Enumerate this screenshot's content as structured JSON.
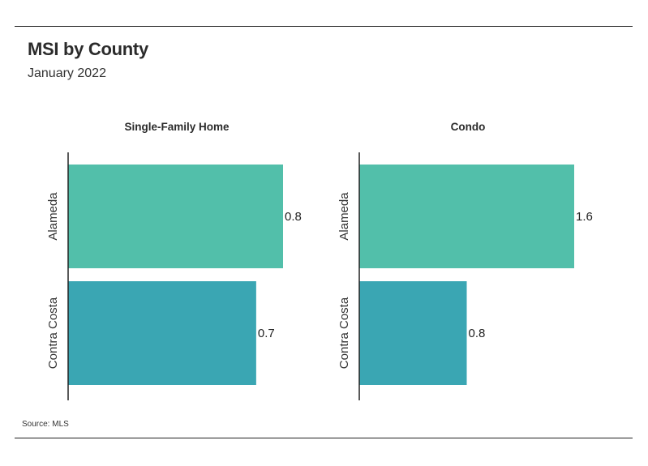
{
  "title": "MSI by County",
  "subtitle": "January 2022",
  "source": "Source:  MLS",
  "colors": {
    "alameda": "#52bfaa",
    "contra_costa": "#3aa6b3",
    "axis": "#222222"
  },
  "chart_data": [
    {
      "type": "bar",
      "orientation": "horizontal",
      "title": "Single-Family Home",
      "categories": [
        "Alameda",
        "Contra Costa"
      ],
      "values": [
        0.8,
        0.7
      ],
      "data_labels": [
        "0.8",
        "0.7"
      ],
      "xlim": [
        0,
        0.8
      ],
      "grid": false
    },
    {
      "type": "bar",
      "orientation": "horizontal",
      "title": "Condo",
      "categories": [
        "Alameda",
        "Contra Costa"
      ],
      "values": [
        1.6,
        0.8
      ],
      "data_labels": [
        "1.6",
        "0.8"
      ],
      "xlim": [
        0,
        1.6
      ],
      "grid": false
    }
  ]
}
